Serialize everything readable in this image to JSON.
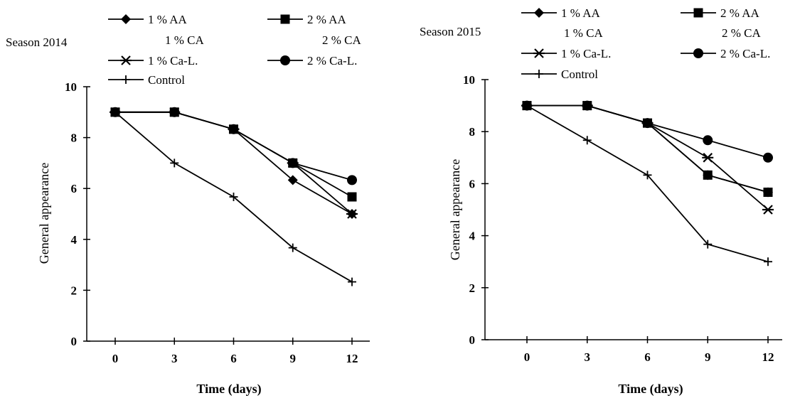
{
  "chart_data": [
    {
      "type": "line",
      "title": "Season 2014",
      "xlabel": "Time (days)",
      "ylabel": "General appearance",
      "x": [
        0,
        3,
        6,
        9,
        12
      ],
      "x_ticks": [
        "0",
        "3",
        "6",
        "9",
        "12"
      ],
      "ylim": [
        0,
        10
      ],
      "y_ticks": [
        "0",
        "2",
        "4",
        "6",
        "8",
        "10"
      ],
      "grid": false,
      "legend_position": "top",
      "series": [
        {
          "name": "1 % AA",
          "name2": "1 % CA",
          "marker": "diamond",
          "values": [
            9,
            9,
            8.33,
            6.33,
            5
          ]
        },
        {
          "name": "2 % AA",
          "name2": "2 % CA",
          "marker": "square",
          "values": [
            9,
            9,
            8.33,
            7,
            5.67
          ]
        },
        {
          "name": "1 % Ca-L.",
          "name2": "",
          "marker": "star",
          "values": [
            9,
            9,
            8.33,
            7,
            5
          ]
        },
        {
          "name": "2 % Ca-L.",
          "name2": "",
          "marker": "circle",
          "values": [
            9,
            9,
            8.33,
            7,
            6.33
          ]
        },
        {
          "name": "Control",
          "name2": "",
          "marker": "plus",
          "values": [
            9,
            7,
            5.67,
            3.67,
            2.33
          ]
        }
      ]
    },
    {
      "type": "line",
      "title": "Season 2015",
      "xlabel": "Time (days)",
      "ylabel": "General appearance",
      "x": [
        0,
        3,
        6,
        9,
        12
      ],
      "x_ticks": [
        "0",
        "3",
        "6",
        "9",
        "12"
      ],
      "ylim": [
        0,
        10
      ],
      "y_ticks": [
        "0",
        "2",
        "4",
        "6",
        "8",
        "10"
      ],
      "grid": false,
      "legend_position": "top",
      "series": [
        {
          "name": "1 % AA",
          "name2": "1 % CA",
          "marker": "diamond",
          "values": [
            9,
            9,
            8.33,
            6.33,
            5.67
          ]
        },
        {
          "name": "2 % AA",
          "name2": "2 % CA",
          "marker": "square",
          "values": [
            9,
            9,
            8.33,
            6.33,
            5.67
          ]
        },
        {
          "name": "1 % Ca-L.",
          "name2": "",
          "marker": "star",
          "values": [
            9,
            9,
            8.33,
            7,
            5
          ]
        },
        {
          "name": "2 % Ca-L.",
          "name2": "",
          "marker": "circle",
          "values": [
            9,
            9,
            8.33,
            7.67,
            7
          ]
        },
        {
          "name": "Control",
          "name2": "",
          "marker": "plus",
          "values": [
            9,
            7.67,
            6.33,
            3.67,
            3
          ]
        }
      ]
    }
  ]
}
